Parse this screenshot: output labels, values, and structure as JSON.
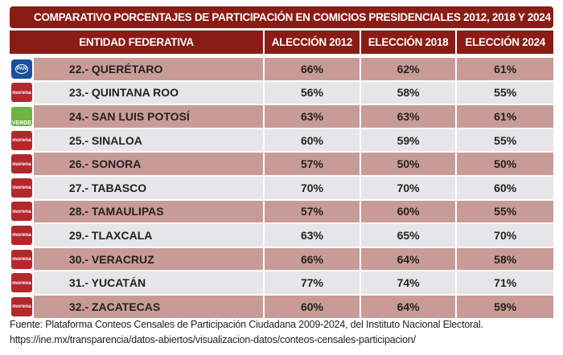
{
  "title": "COMPARATIVO PORCENTAJES DE PARTICIPACIÓN EN COMICIOS PRESIDENCIALES 2012,  2018 Y 2024",
  "headers": [
    "ENTIDAD FEDERATIVA",
    "ALECCIÓN 2012",
    "ELECCIÓN 2018",
    "ELECCIÓN 2024"
  ],
  "rows": [
    {
      "party": "PAN",
      "logo": "pan",
      "entity": "22.- QUERÉTARO",
      "v2012": "66%",
      "v2018": "62%",
      "v2024": "61%"
    },
    {
      "party": "morena",
      "logo": "morena",
      "entity": "23.- QUINTANA ROO",
      "v2012": "56%",
      "v2018": "58%",
      "v2024": "55%"
    },
    {
      "party": "VERDE",
      "logo": "verde",
      "entity": "24.- SAN LUIS POTOSÍ",
      "v2012": "63%",
      "v2018": "63%",
      "v2024": "61%"
    },
    {
      "party": "morena",
      "logo": "morena",
      "entity": "25.- SINALOA",
      "v2012": "60%",
      "v2018": "59%",
      "v2024": "55%"
    },
    {
      "party": "morena",
      "logo": "morena",
      "entity": "26.- SONORA",
      "v2012": "57%",
      "v2018": "50%",
      "v2024": "50%"
    },
    {
      "party": "morena",
      "logo": "morena",
      "entity": "27.- TABASCO",
      "v2012": "70%",
      "v2018": "70%",
      "v2024": "60%"
    },
    {
      "party": "morena",
      "logo": "morena",
      "entity": "28.- TAMAULIPAS",
      "v2012": "57%",
      "v2018": "60%",
      "v2024": "55%"
    },
    {
      "party": "morena",
      "logo": "morena",
      "entity": "29.- TLAXCALA",
      "v2012": "63%",
      "v2018": "65%",
      "v2024": "70%"
    },
    {
      "party": "morena",
      "logo": "morena",
      "entity": "30.- VERACRUZ",
      "v2012": "66%",
      "v2018": "64%",
      "v2024": "58%"
    },
    {
      "party": "morena",
      "logo": "morena",
      "entity": "31.- YUCATÁN",
      "v2012": "77%",
      "v2018": "74%",
      "v2024": "71%"
    },
    {
      "party": "morena",
      "logo": "morena",
      "entity": "32.- ZACATECAS",
      "v2012": "60%",
      "v2018": "64%",
      "v2024": "59%"
    }
  ],
  "footer": {
    "source": "Fuente: Plataforma Conteos Censales de Participación Ciudadana 2009-2024, del Instituto Nacional Electoral.",
    "url": "https://ine.mx/transparencia/datos-abiertos/visualizacion-datos/conteos-censales-participacion/"
  },
  "colors": {
    "header": "#8a1c16",
    "row_pink": "#c99b97",
    "row_gray": "#e6e6e8"
  }
}
